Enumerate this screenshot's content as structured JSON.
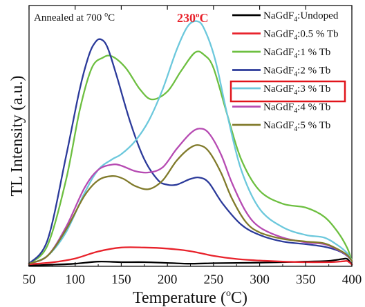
{
  "chart_data": {
    "type": "line",
    "xlabel": "Temperature (°C)",
    "xlabel_main": "Temperature (",
    "xlabel_unit_sup": "o",
    "xlabel_unit": "C)",
    "ylabel": "TL Intensity (a.u.)",
    "xlim": [
      50,
      400
    ],
    "ylim": [
      0,
      100
    ],
    "xticks": [
      50,
      100,
      150,
      200,
      250,
      300,
      350,
      400
    ],
    "y_tick_labels": false,
    "grid": false,
    "legend_position": "top-right",
    "annotations": {
      "condition_prefix": "Annealed at 700 ",
      "condition_sup": "o",
      "condition_suffix": "C",
      "peak_value": "230",
      "peak_sup": "o",
      "peak_unit": "C",
      "peak_color": "#e8222b",
      "highlight_series": "NaGdF4:3 % Tb",
      "highlight_color": "#e0141b"
    },
    "series": [
      {
        "name": "NaGdF4:Undoped",
        "legend_prefix": "NaGdF",
        "legend_sub": "4",
        "legend_suffix": ":Undoped",
        "color": "#000000",
        "x": [
          50,
          75,
          100,
          125,
          150,
          175,
          200,
          225,
          250,
          275,
          300,
          325,
          350,
          375,
          390,
          395,
          400
        ],
        "y": [
          0.3,
          0.6,
          1.0,
          1.8,
          1.6,
          1.6,
          1.3,
          1.0,
          1.2,
          1.3,
          1.4,
          1.6,
          1.8,
          2.1,
          2.8,
          2.8,
          0.6
        ]
      },
      {
        "name": "NaGdF4:0.5 % Tb",
        "legend_prefix": "NaGdF",
        "legend_sub": "4",
        "legend_suffix": ":0.5 % Tb",
        "color": "#e8222b",
        "x": [
          50,
          75,
          100,
          125,
          150,
          175,
          200,
          225,
          250,
          275,
          300,
          325,
          350,
          375,
          390,
          395,
          400
        ],
        "y": [
          0.8,
          1.5,
          3.0,
          5.7,
          7.2,
          7.2,
          6.8,
          5.8,
          4.0,
          2.8,
          2.2,
          1.8,
          1.6,
          1.6,
          1.9,
          2.0,
          0.7
        ]
      },
      {
        "name": "NaGdF4:1 % Tb",
        "legend_prefix": "NaGdF",
        "legend_sub": "4",
        "legend_suffix": ":1 % Tb",
        "color": "#6dbf40",
        "x": [
          50,
          70,
          90,
          105,
          118,
          130,
          140,
          155,
          170,
          183,
          200,
          215,
          230,
          240,
          250,
          265,
          280,
          300,
          325,
          350,
          370,
          385,
          395,
          400
        ],
        "y": [
          1,
          8,
          33,
          60,
          76,
          80,
          80.5,
          76,
          68,
          64,
          67,
          75,
          82,
          81,
          76,
          58,
          41,
          29,
          24,
          22.5,
          19,
          13,
          7,
          2
        ]
      },
      {
        "name": "NaGdF4:2 % Tb",
        "legend_prefix": "NaGdF",
        "legend_sub": "4",
        "legend_suffix": ":2 % Tb",
        "color": "#2b3a9a",
        "x": [
          50,
          70,
          90,
          105,
          115,
          122,
          128,
          135,
          145,
          160,
          175,
          190,
          200,
          210,
          225,
          235,
          245,
          260,
          280,
          300,
          325,
          350,
          370,
          385,
          395,
          400
        ],
        "y": [
          1,
          10,
          42,
          68,
          81,
          86,
          87,
          84,
          73,
          55,
          41,
          33,
          31.3,
          31.3,
          33.5,
          34,
          32,
          24,
          16,
          12,
          9.5,
          8.5,
          7.5,
          6,
          4,
          2
        ]
      },
      {
        "name": "NaGdF4:3 % Tb",
        "legend_prefix": "NaGdF",
        "legend_sub": "4",
        "legend_suffix": ":3 % Tb",
        "color": "#6cc8dc",
        "x": [
          50,
          70,
          90,
          110,
          125,
          140,
          150,
          165,
          180,
          195,
          210,
          222,
          232,
          240,
          252,
          265,
          280,
          300,
          325,
          350,
          370,
          385,
          395,
          400
        ],
        "y": [
          1,
          4,
          13,
          28,
          37,
          41,
          43,
          48,
          56,
          68,
          83,
          92,
          94,
          91,
          79,
          58,
          37,
          22,
          15,
          12,
          11,
          8,
          5,
          2
        ]
      },
      {
        "name": "NaGdF4:4 % Tb",
        "legend_prefix": "NaGdF",
        "legend_sub": "4",
        "legend_suffix": ":4 % Tb",
        "color": "#b64ab2",
        "x": [
          50,
          70,
          90,
          110,
          125,
          140,
          150,
          165,
          180,
          195,
          210,
          225,
          235,
          245,
          258,
          270,
          285,
          300,
          325,
          350,
          370,
          385,
          395,
          400
        ],
        "y": [
          1,
          4,
          15,
          30,
          37,
          39,
          38.6,
          36.5,
          36,
          38,
          45,
          51,
          52.8,
          51,
          43,
          32,
          21,
          15,
          11,
          9.2,
          8.5,
          6.3,
          4.1,
          2
        ]
      },
      {
        "name": "NaGdF4:5 % Tb",
        "legend_prefix": "NaGdF",
        "legend_sub": "4",
        "legend_suffix": ":5 % Tb",
        "color": "#807a2a",
        "x": [
          50,
          70,
          90,
          110,
          125,
          140,
          152,
          165,
          180,
          195,
          210,
          225,
          235,
          245,
          258,
          270,
          285,
          300,
          325,
          350,
          370,
          385,
          395,
          400
        ],
        "y": [
          1,
          4,
          14,
          27,
          33,
          34.6,
          33.6,
          30.8,
          29.6,
          33,
          40.5,
          45.5,
          46.4,
          44,
          36,
          26,
          17,
          13,
          10.5,
          9.5,
          8.8,
          6.5,
          4.3,
          2
        ]
      }
    ]
  }
}
